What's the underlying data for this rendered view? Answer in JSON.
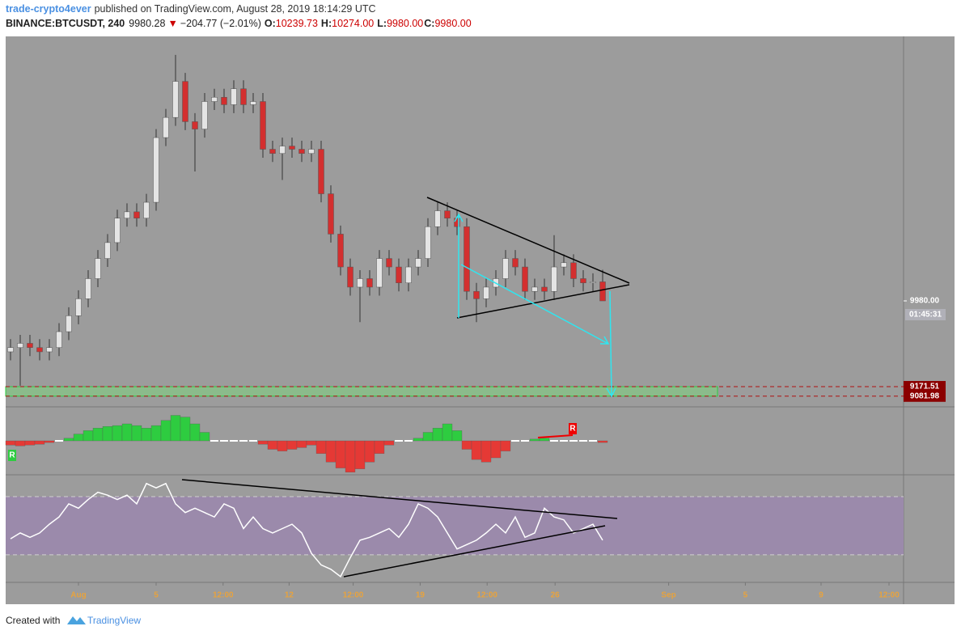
{
  "header": {
    "author": "trade-crypto4ever",
    "published": "published on TradingView.com, August 28, 2019 18:14:29 UTC",
    "symbol": "BINANCE:BTCUSDT, 240",
    "last": "9980.28",
    "arrow": "▼",
    "change": "−204.77 (−2.01%)",
    "o_label": "O:",
    "o": "10239.73",
    "h_label": "H:",
    "h": "10274.00",
    "l_label": "L:",
    "l": "9980.00",
    "c_label": "C:",
    "c": "9980.00"
  },
  "chart_data": [
    {
      "type": "candlestick",
      "xlim": [
        0,
        92.5
      ],
      "ylim": [
        8981,
        12474
      ],
      "up_color": "#e4e4e4",
      "down_color": "#d32f2f",
      "wick_color": "#333333",
      "open": [
        9500,
        9540,
        9580,
        9540,
        9500,
        9540,
        9690,
        9840,
        10000,
        10190,
        10380,
        10530,
        10760,
        10820,
        10760,
        10910,
        11520,
        11710,
        12050,
        11670,
        11600,
        11860,
        11900,
        11830,
        11980,
        11830,
        11860,
        11410,
        11370,
        11440,
        11410,
        11370,
        11410,
        10990,
        10610,
        10300,
        10110,
        10190,
        10110,
        10380,
        10300,
        10150,
        10300,
        10380,
        10680,
        10830,
        10760,
        10680,
        10070,
        10000,
        10110,
        10190,
        10380,
        10300,
        10070,
        10110,
        10070,
        10300,
        10340,
        10190,
        10150,
        10160
      ],
      "high": [
        9620,
        9660,
        9660,
        9620,
        9620,
        9770,
        9920,
        10080,
        10270,
        10460,
        10610,
        10840,
        10900,
        10900,
        10990,
        11600,
        11790,
        12300,
        12130,
        11750,
        11940,
        11980,
        11980,
        12060,
        12060,
        11940,
        11940,
        11490,
        11520,
        11520,
        11490,
        11490,
        11490,
        11070,
        10690,
        10380,
        10270,
        10270,
        10460,
        10460,
        10380,
        10380,
        10460,
        10760,
        10910,
        10910,
        10840,
        10760,
        10150,
        10190,
        10270,
        10460,
        10460,
        10380,
        10190,
        10190,
        10600,
        10420,
        10420,
        10270,
        10240,
        10274
      ],
      "low": [
        9420,
        9180,
        9460,
        9420,
        9420,
        9460,
        9610,
        9760,
        9920,
        10110,
        10300,
        10450,
        10680,
        10680,
        10680,
        10830,
        11440,
        11630,
        11590,
        11200,
        11520,
        11780,
        11750,
        11750,
        11750,
        11750,
        11330,
        11290,
        11120,
        11330,
        11290,
        11290,
        10910,
        10530,
        10220,
        10030,
        9780,
        10030,
        10030,
        10220,
        10070,
        10070,
        10220,
        10300,
        10600,
        10680,
        10600,
        9990,
        9780,
        9920,
        10030,
        10110,
        10220,
        9990,
        9990,
        9990,
        9990,
        10220,
        10110,
        10070,
        10070,
        9980
      ],
      "close": [
        9540,
        9580,
        9540,
        9500,
        9540,
        9690,
        9840,
        10000,
        10190,
        10380,
        10530,
        10760,
        10820,
        10760,
        10910,
        11520,
        11710,
        12050,
        11670,
        11600,
        11860,
        11900,
        11830,
        11980,
        11830,
        11860,
        11410,
        11370,
        11440,
        11410,
        11370,
        11410,
        10990,
        10610,
        10300,
        10110,
        10190,
        10110,
        10380,
        10300,
        10150,
        10300,
        10380,
        10680,
        10830,
        10760,
        10680,
        10070,
        10000,
        10110,
        10190,
        10380,
        10300,
        10070,
        10110,
        10070,
        10300,
        10340,
        10190,
        10150,
        10160,
        9980
      ],
      "levels": [
        {
          "value": 9171.51,
          "label": "9171.51"
        },
        {
          "value": 9081.98,
          "label": "9081.98"
        }
      ],
      "last_price": {
        "value": 9980,
        "label": "9980.00"
      },
      "countdown": "01:45:31"
    },
    {
      "type": "bar",
      "xlim": [
        0,
        92.5
      ],
      "ylim": [
        -40,
        40
      ],
      "pos_color": "#2ecc40",
      "neg_color": "#e53935",
      "values": [
        -5,
        -6,
        -5,
        -4,
        -2,
        0,
        3,
        8,
        12,
        15,
        17,
        18,
        20,
        18,
        15,
        18,
        24,
        30,
        28,
        20,
        10,
        0,
        0,
        0,
        0,
        0,
        -4,
        -10,
        -12,
        -10,
        -8,
        -5,
        -15,
        -25,
        -32,
        -37,
        -33,
        -25,
        -15,
        -5,
        0,
        0,
        3,
        10,
        15,
        20,
        12,
        -10,
        -22,
        -25,
        -20,
        -12,
        0,
        0,
        2,
        3,
        0,
        0,
        0,
        0,
        0,
        -2
      ],
      "annotations": [
        "R",
        "R"
      ]
    },
    {
      "type": "line",
      "xlim": [
        0,
        92.5
      ],
      "ylim": [
        11,
        85
      ],
      "bands": [
        30,
        70
      ],
      "color": "#ffffff",
      "band_color": "#9b8aab",
      "values": [
        41,
        45,
        42,
        45,
        51,
        56,
        65,
        62,
        68,
        73,
        71,
        68,
        71,
        65,
        79,
        76,
        79,
        65,
        59,
        62,
        59,
        56,
        65,
        62,
        48,
        56,
        48,
        45,
        48,
        51,
        45,
        31,
        23,
        20,
        15,
        28,
        40,
        42,
        45,
        48,
        42,
        51,
        65,
        62,
        56,
        45,
        34,
        37,
        40,
        45,
        51,
        45,
        56,
        42,
        45,
        62,
        56,
        54,
        45,
        48,
        51,
        40
      ],
      "xticks": [
        {
          "value": 7.5,
          "label": "Aug"
        },
        {
          "value": 15.5,
          "label": "5"
        },
        {
          "value": 22.4,
          "label": "12:00"
        },
        {
          "value": 29.2,
          "label": "12"
        },
        {
          "value": 35.8,
          "label": "12:00"
        },
        {
          "value": 42.7,
          "label": "19"
        },
        {
          "value": 49.6,
          "label": "12:00"
        },
        {
          "value": 56.6,
          "label": "26"
        },
        {
          "value": 68.3,
          "label": "Sep"
        },
        {
          "value": 76.2,
          "label": "5"
        },
        {
          "value": 84.0,
          "label": "9"
        },
        {
          "value": 91.0,
          "label": "12:00"
        }
      ]
    }
  ],
  "footer": {
    "text": "Created with",
    "brand": "TradingView"
  }
}
